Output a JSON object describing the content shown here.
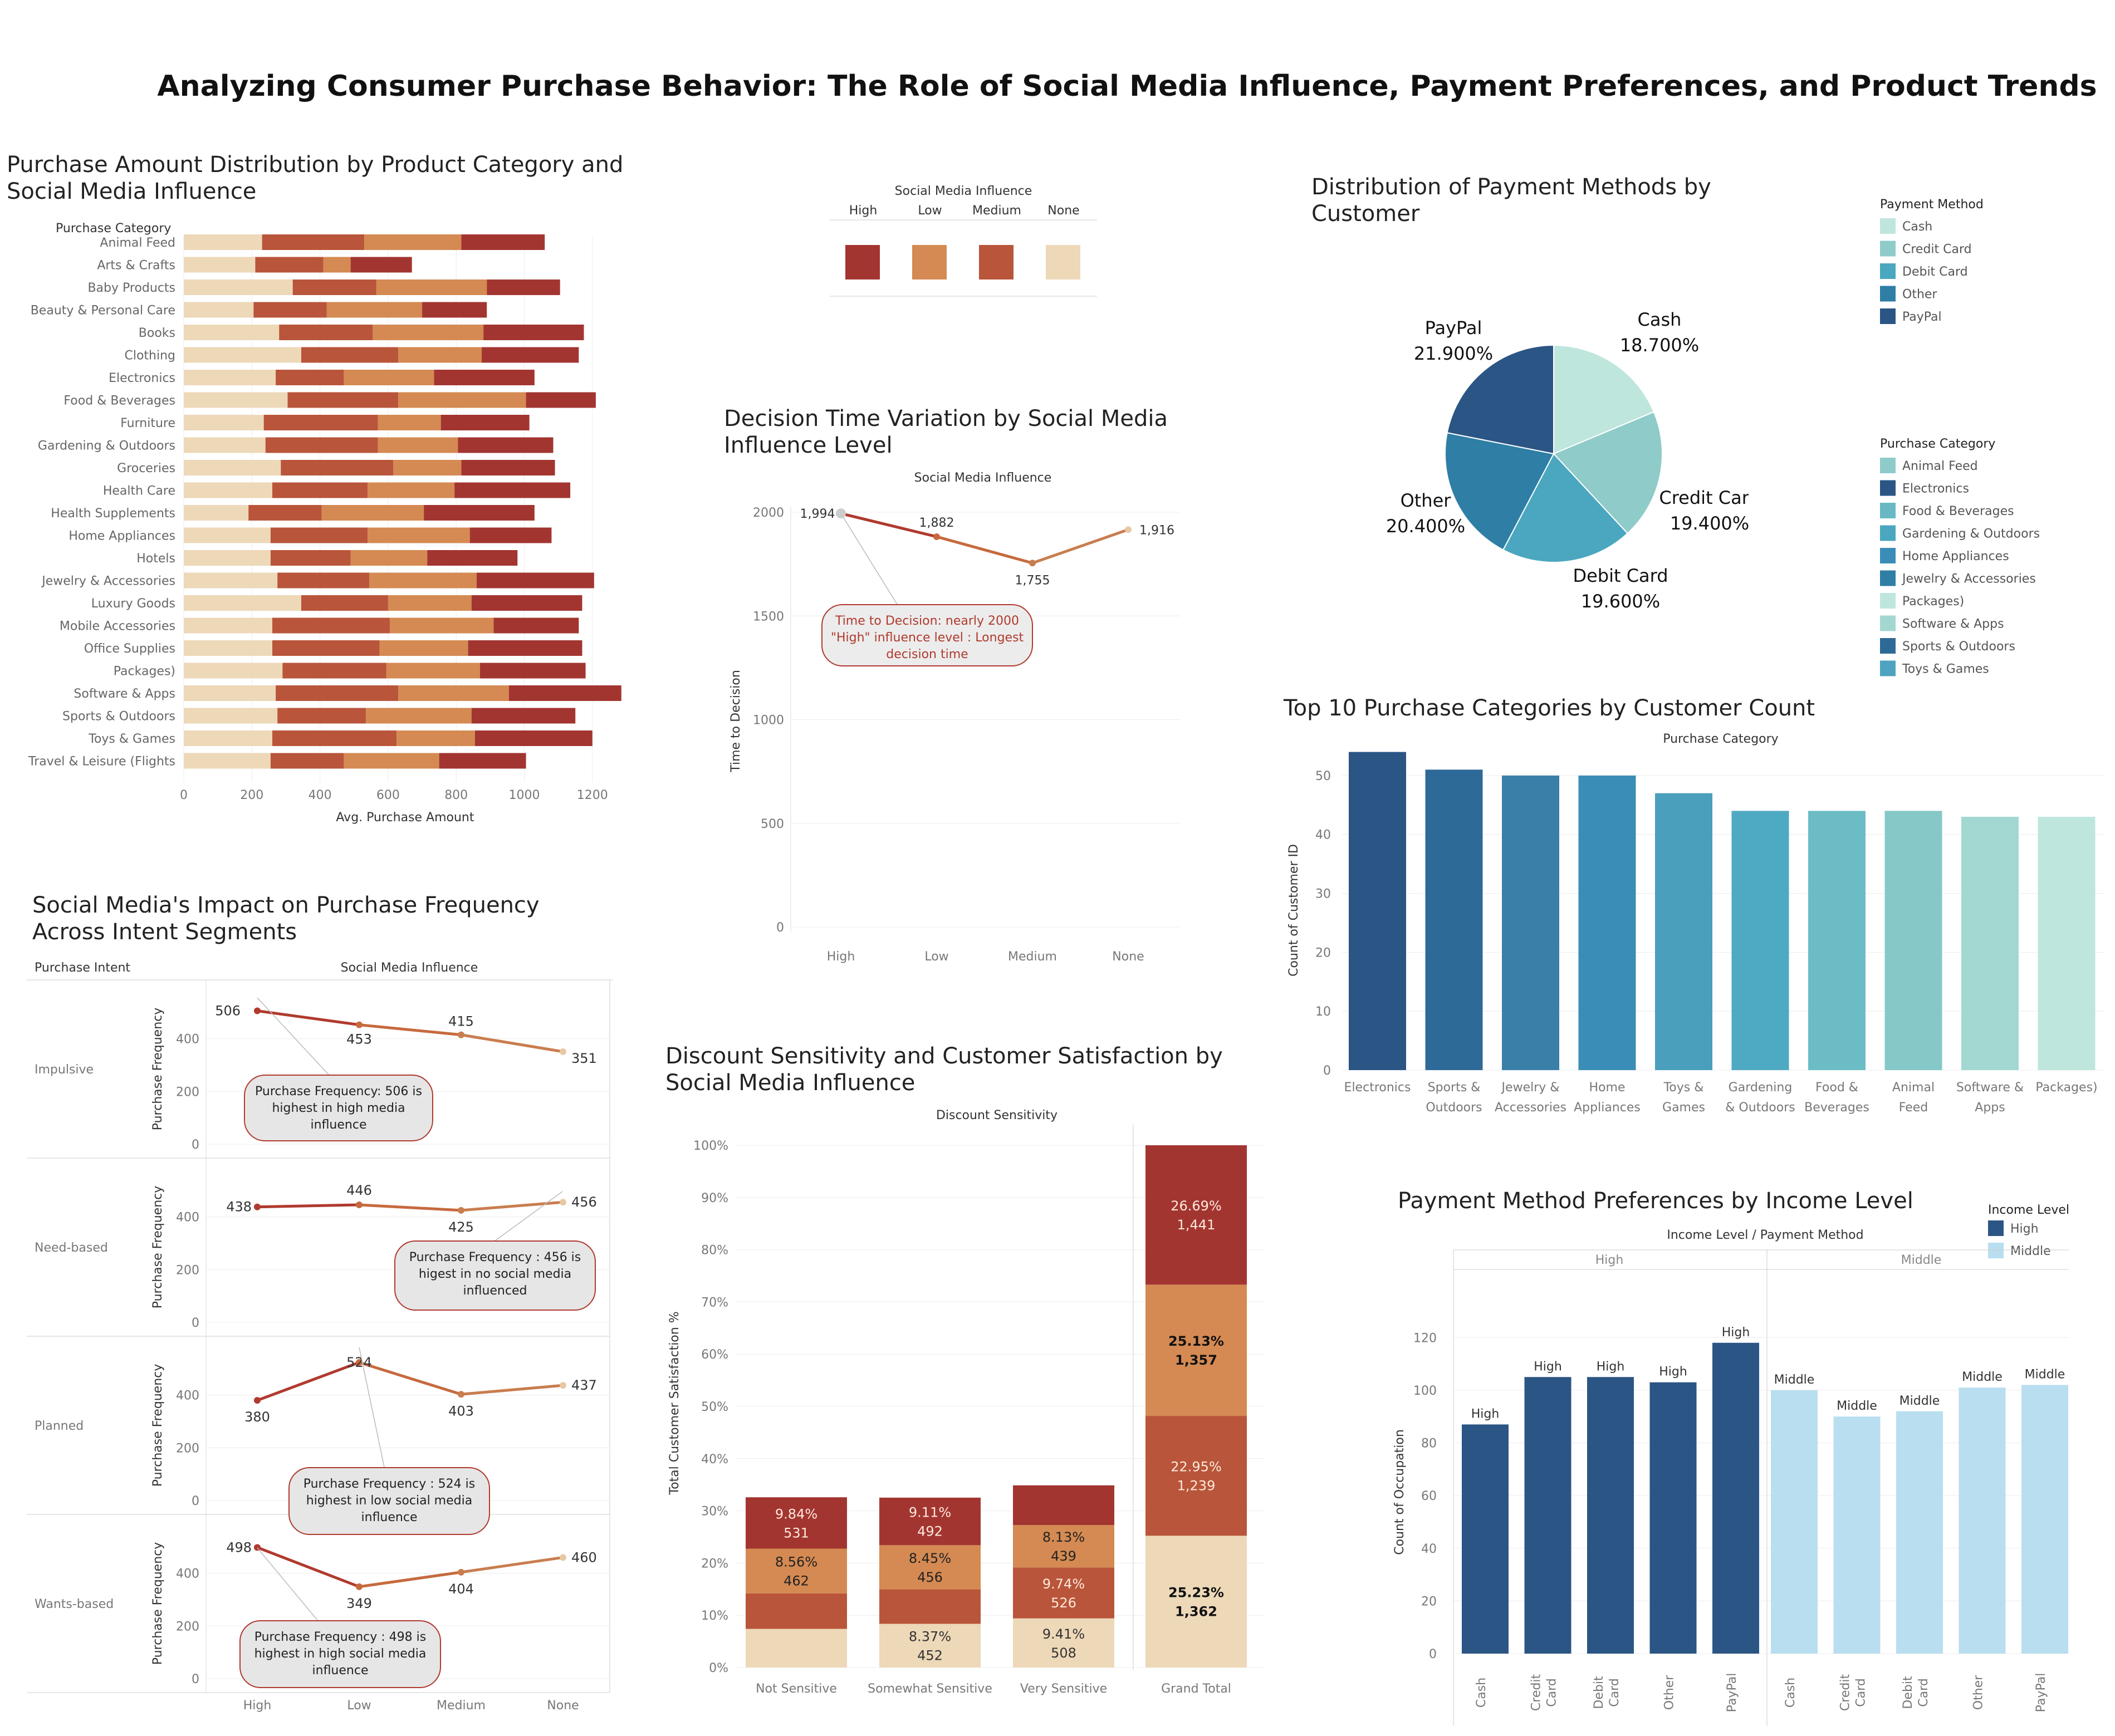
{
  "title": "Analyzing Consumer Purchase Behavior: The Role of Social Media Influence, Payment Preferences, and Product Trends",
  "colors": {
    "High": "#a33531",
    "Low": "#d48a52",
    "Medium": "#b9553a",
    "None": "#edd8b8"
  },
  "influence_legend": {
    "title": "Social Media Influence",
    "items": [
      "High",
      "Low",
      "Medium",
      "None"
    ]
  },
  "panels": {
    "purchase_amount": {
      "title_line1": "Purchase Amount Distribution by Product Category and",
      "title_line2": "Social Media Influence"
    },
    "decision_time": {
      "title_line1": "Decision Time Variation by Social Media",
      "title_line2": "Influence Level",
      "callout": "Time to Decision: nearly 2000 \"High\" influence level : Longest decision time"
    },
    "payment_pie": {
      "title_line1": "Distribution of Payment Methods by",
      "title_line2": "Customer"
    },
    "top10": {
      "title": "Top 10 Purchase Categories by Customer Count"
    },
    "frequency": {
      "title_line1": "Social Media's Impact on Purchase Frequency",
      "title_line2": "Across Intent Segments",
      "callouts": [
        "Purchase Frequency: 506 is highest in high media influence",
        "Purchase Frequency : 456 is higest in no social media influenced",
        "Purchase Frequency : 524 is highest in low social media influence",
        "Purchase Frequency : 498 is highest in high social media influence"
      ]
    },
    "discount": {
      "title_line1": "Discount Sensitivity and Customer Satisfaction by",
      "title_line2": "Social Media Influence"
    },
    "income": {
      "title": "Payment Method Preferences by Income Level"
    }
  },
  "payment_legend": {
    "title": "Payment Method",
    "items": [
      {
        "label": "Cash",
        "color": "#bfe6dc"
      },
      {
        "label": "Credit Card",
        "color": "#8ecbc9"
      },
      {
        "label": "Debit Card",
        "color": "#4aa7bf"
      },
      {
        "label": "Other",
        "color": "#2f7ea6"
      },
      {
        "label": "PayPal",
        "color": "#2b5584"
      }
    ]
  },
  "category_legend": {
    "title": "Purchase Category",
    "items": [
      {
        "label": "Animal Feed",
        "color": "#8ecbc9"
      },
      {
        "label": "Electronics",
        "color": "#2b5584"
      },
      {
        "label": "Food & Beverages",
        "color": "#69b8c4"
      },
      {
        "label": "Gardening & Outdoors",
        "color": "#4aa7bf"
      },
      {
        "label": "Home Appliances",
        "color": "#3a8db6"
      },
      {
        "label": "Jewelry & Accessories",
        "color": "#2f7ea6"
      },
      {
        "label": "Packages)",
        "color": "#bfe6dc"
      },
      {
        "label": "Software & Apps",
        "color": "#a3d7d2"
      },
      {
        "label": "Sports & Outdoors",
        "color": "#2e6a98"
      },
      {
        "label": "Toys & Games",
        "color": "#4ea3c0"
      }
    ]
  },
  "income_legend": {
    "title": "Income Level",
    "items": [
      {
        "label": "High",
        "color": "#2b5584"
      },
      {
        "label": "Middle",
        "color": "#b9def0"
      }
    ]
  },
  "chart_data": [
    {
      "id": "purchase_amount",
      "type": "bar",
      "orientation": "horizontal-stacked",
      "row_header": "Purchase Category",
      "xlabel": "Avg. Purchase Amount",
      "xlim": [
        0,
        1300
      ],
      "xticks": [
        0,
        200,
        400,
        600,
        800,
        1000,
        1200
      ],
      "stack_order": [
        "None",
        "Medium",
        "Low",
        "High"
      ],
      "categories": [
        "Animal Feed",
        "Arts & Crafts",
        "Baby Products",
        "Beauty & Personal Care",
        "Books",
        "Clothing",
        "Electronics",
        "Food & Beverages",
        "Furniture",
        "Gardening & Outdoors",
        "Groceries",
        "Health Care",
        "Health Supplements",
        "Home Appliances",
        "Hotels",
        "Jewelry & Accessories",
        "Luxury Goods",
        "Mobile Accessories",
        "Office Supplies",
        "Packages)",
        "Software & Apps",
        "Sports & Outdoors",
        "Toys & Games",
        "Travel & Leisure (Flights"
      ],
      "series": [
        {
          "name": "None",
          "values": [
            230,
            210,
            320,
            205,
            280,
            345,
            270,
            305,
            235,
            240,
            285,
            260,
            190,
            255,
            255,
            275,
            345,
            260,
            260,
            290,
            270,
            275,
            260,
            255
          ]
        },
        {
          "name": "Medium",
          "values": [
            300,
            200,
            245,
            215,
            275,
            285,
            200,
            325,
            335,
            330,
            330,
            280,
            215,
            285,
            235,
            270,
            255,
            345,
            315,
            305,
            360,
            260,
            365,
            215
          ]
        },
        {
          "name": "Low",
          "values": [
            285,
            80,
            325,
            280,
            325,
            245,
            265,
            375,
            185,
            235,
            200,
            255,
            300,
            300,
            225,
            315,
            245,
            305,
            260,
            275,
            325,
            310,
            230,
            280
          ]
        },
        {
          "name": "High",
          "values": [
            245,
            180,
            215,
            190,
            295,
            285,
            295,
            205,
            260,
            280,
            275,
            340,
            325,
            240,
            265,
            345,
            325,
            250,
            335,
            310,
            330,
            305,
            345,
            255
          ]
        }
      ]
    },
    {
      "id": "decision_time",
      "type": "line",
      "header": "Social Media Influence",
      "ylabel": "Time to Decision",
      "ylim": [
        0,
        2000
      ],
      "yticks": [
        0,
        500,
        1000,
        1500,
        2000
      ],
      "categories": [
        "High",
        "Low",
        "Medium",
        "None"
      ],
      "values": [
        1994,
        1882,
        1755,
        1916
      ],
      "labels": [
        "1,994",
        "1,882",
        "1,755",
        "1,916"
      ]
    },
    {
      "id": "payment_pie",
      "type": "pie",
      "slices": [
        {
          "label": "Cash",
          "value": 18.7,
          "text": "18.700%"
        },
        {
          "label": "Credit Card",
          "value": 19.4,
          "text": "19.400%"
        },
        {
          "label": "Debit Card",
          "value": 19.6,
          "text": "19.600%"
        },
        {
          "label": "Other",
          "value": 20.4,
          "text": "20.400%"
        },
        {
          "label": "PayPal",
          "value": 21.9,
          "text": "21.900%"
        }
      ]
    },
    {
      "id": "top10",
      "type": "bar",
      "header": "Purchase Category",
      "ylabel": "Count of Customer ID",
      "ylim": [
        0,
        55
      ],
      "yticks": [
        0,
        10,
        20,
        30,
        40,
        50
      ],
      "categories": [
        "Electronics",
        "Sports & Outdoors",
        "Jewelry & Accessories",
        "Home Appliances",
        "Toys & Games",
        "Gardening & Outdoors",
        "Food & Beverages",
        "Animal Feed",
        "Software & Apps",
        "Packages)"
      ],
      "tick_lines": [
        [
          "Electronics"
        ],
        [
          "Sports &",
          "Outdoors"
        ],
        [
          "Jewelry &",
          "Accessories"
        ],
        [
          "Home",
          "Appliances"
        ],
        [
          "Toys &",
          "Games"
        ],
        [
          "Gardening",
          "& Outdoors"
        ],
        [
          "Food &",
          "Beverages"
        ],
        [
          "Animal",
          "Feed"
        ],
        [
          "Software &",
          "Apps"
        ],
        [
          "Packages)"
        ]
      ],
      "values": [
        54,
        51,
        50,
        50,
        47,
        44,
        44,
        44,
        43,
        43
      ],
      "colors": [
        "#2b5584",
        "#2e6a98",
        "#3a7fa8",
        "#3a8db6",
        "#4a9fbd",
        "#4eaac2",
        "#6cbcc6",
        "#86c8c8",
        "#a3d7d2",
        "#bfe6dc"
      ]
    },
    {
      "id": "frequency",
      "type": "line",
      "row_header": "Purchase Intent",
      "header": "Social Media Influence",
      "ylabel": "Purchase Frequency",
      "ylim": [
        0,
        560
      ],
      "yticks": [
        0,
        200,
        400
      ],
      "categories": [
        "High",
        "Low",
        "Medium",
        "None"
      ],
      "series": [
        {
          "name": "Impulsive",
          "values": [
            506,
            453,
            415,
            351
          ]
        },
        {
          "name": "Need-based",
          "values": [
            438,
            446,
            425,
            456
          ]
        },
        {
          "name": "Planned",
          "values": [
            380,
            524,
            403,
            437
          ]
        },
        {
          "name": "Wants-based",
          "values": [
            498,
            349,
            404,
            460
          ]
        }
      ]
    },
    {
      "id": "discount",
      "type": "bar",
      "orientation": "vertical-stacked",
      "header": "Discount Sensitivity",
      "ylabel": "Total Customer Satisfaction %",
      "ylim": [
        0,
        100
      ],
      "yticks": [
        0,
        10,
        20,
        30,
        40,
        50,
        60,
        70,
        80,
        90,
        100
      ],
      "categories": [
        "Not Sensitive",
        "Somewhat Sensitive",
        "Very Sensitive",
        "Grand Total"
      ],
      "stack_order": [
        "None",
        "Medium",
        "Low",
        "High"
      ],
      "series": [
        {
          "name": "None",
          "values": [
            7.4,
            8.37,
            9.41,
            25.23
          ],
          "labels": [
            "",
            "8.37%|452",
            "9.41%|508",
            "25.23%|1,362"
          ]
        },
        {
          "name": "Medium",
          "values": [
            6.8,
            6.6,
            9.74,
            22.95
          ],
          "labels": [
            "",
            "",
            "9.74%|526",
            "22.95%|1,239"
          ]
        },
        {
          "name": "Low",
          "values": [
            8.56,
            8.45,
            8.13,
            25.13
          ],
          "labels": [
            "8.56%|462",
            "8.45%|456",
            "8.13%|439",
            "25.13%|1,357"
          ]
        },
        {
          "name": "High",
          "values": [
            9.84,
            9.11,
            7.6,
            26.69
          ],
          "labels": [
            "9.84%|531",
            "9.11%|492",
            "",
            "26.69%|1,441"
          ]
        }
      ]
    },
    {
      "id": "income",
      "type": "bar",
      "header": "Income Level  /  Payment Method",
      "ylabel": "Count of Occupation",
      "ylim": [
        0,
        130
      ],
      "yticks": [
        0,
        20,
        40,
        60,
        80,
        100,
        120
      ],
      "groups": [
        {
          "name": "High",
          "color": "#2b5584",
          "categories": [
            "Cash",
            "Credit Card",
            "Debit Card",
            "Other",
            "PayPal"
          ],
          "values": [
            87,
            105,
            105,
            103,
            118
          ]
        },
        {
          "name": "Middle",
          "color": "#b9def0",
          "categories": [
            "Cash",
            "Credit Card",
            "Debit Card",
            "Other",
            "PayPal"
          ],
          "values": [
            100,
            90,
            92,
            101,
            102
          ]
        }
      ]
    }
  ]
}
